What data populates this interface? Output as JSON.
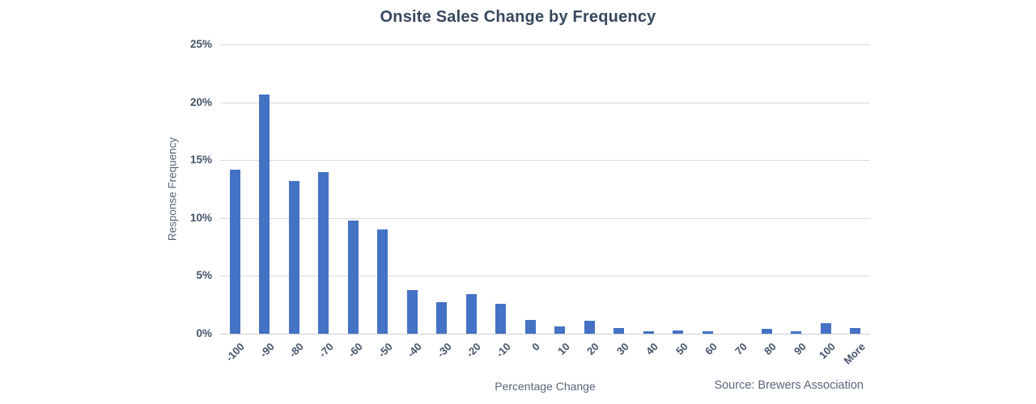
{
  "chart_data": {
    "type": "bar",
    "title": "Onsite Sales Change by Frequency",
    "xlabel": "Percentage Change",
    "ylabel": "Response Frequency",
    "source": "Source: Brewers Association",
    "categories": [
      "-100",
      "-90",
      "-80",
      "-70",
      "-60",
      "-50",
      "-40",
      "-30",
      "-20",
      "-10",
      "0",
      "10",
      "20",
      "30",
      "40",
      "50",
      "60",
      "70",
      "80",
      "90",
      "100",
      "More"
    ],
    "values": [
      14.2,
      20.7,
      13.2,
      14.0,
      9.8,
      9.0,
      3.8,
      2.7,
      3.4,
      2.6,
      1.2,
      0.6,
      1.1,
      0.5,
      0.2,
      0.25,
      0.2,
      0,
      0.4,
      0.2,
      0.9,
      0.5
    ],
    "ylim": [
      0,
      25
    ],
    "y_tick_values": [
      0,
      5,
      10,
      15,
      20,
      25
    ],
    "y_tick_labels": [
      "0%",
      "5%",
      "10%",
      "15%",
      "20%",
      "25%"
    ],
    "grid": "horizontal",
    "legend": "none",
    "bar_color": "#4472C4"
  },
  "colors": {
    "bar": "#4472C4",
    "title_text": "#37475F",
    "axis_tick_text": "#44546A",
    "muted_text": "#5A6679",
    "gridline": "#D9D9D9",
    "background": "#FFFFFF"
  }
}
